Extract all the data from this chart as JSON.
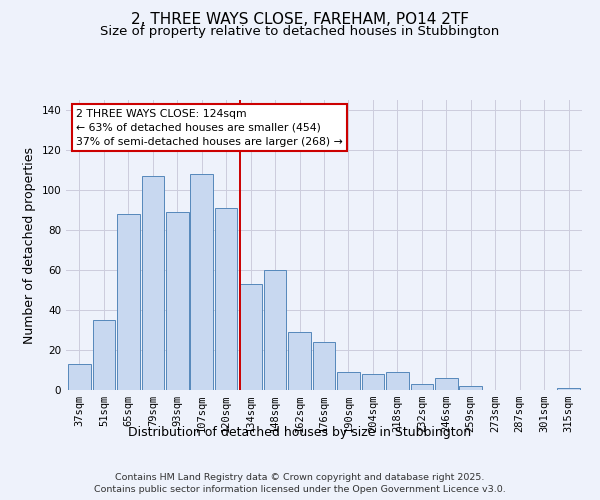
{
  "title": "2, THREE WAYS CLOSE, FAREHAM, PO14 2TF",
  "subtitle": "Size of property relative to detached houses in Stubbington",
  "xlabel": "Distribution of detached houses by size in Stubbington",
  "ylabel": "Number of detached properties",
  "categories": [
    "37sqm",
    "51sqm",
    "65sqm",
    "79sqm",
    "93sqm",
    "107sqm",
    "120sqm",
    "134sqm",
    "148sqm",
    "162sqm",
    "176sqm",
    "190sqm",
    "204sqm",
    "218sqm",
    "232sqm",
    "246sqm",
    "259sqm",
    "273sqm",
    "287sqm",
    "301sqm",
    "315sqm"
  ],
  "values": [
    13,
    35,
    88,
    107,
    89,
    108,
    91,
    53,
    60,
    29,
    24,
    9,
    8,
    9,
    3,
    6,
    2,
    0,
    0,
    0,
    1
  ],
  "bar_color": "#c8d8f0",
  "bar_edge_color": "#5588bb",
  "vline_x": 6.57,
  "vline_color": "#cc0000",
  "ylim": [
    0,
    145
  ],
  "yticks": [
    0,
    20,
    40,
    60,
    80,
    100,
    120,
    140
  ],
  "annotation_title": "2 THREE WAYS CLOSE: 124sqm",
  "annotation_line1": "← 63% of detached houses are smaller (454)",
  "annotation_line2": "37% of semi-detached houses are larger (268) →",
  "annotation_box_color": "#ffffff",
  "annotation_box_edge": "#cc0000",
  "footer1": "Contains HM Land Registry data © Crown copyright and database right 2025.",
  "footer2": "Contains public sector information licensed under the Open Government Licence v3.0.",
  "background_color": "#eef2fb",
  "grid_color": "#ccccdd",
  "title_fontsize": 11,
  "subtitle_fontsize": 9.5,
  "label_fontsize": 9,
  "tick_fontsize": 7.5,
  "annotation_fontsize": 7.8,
  "footer_fontsize": 6.8
}
